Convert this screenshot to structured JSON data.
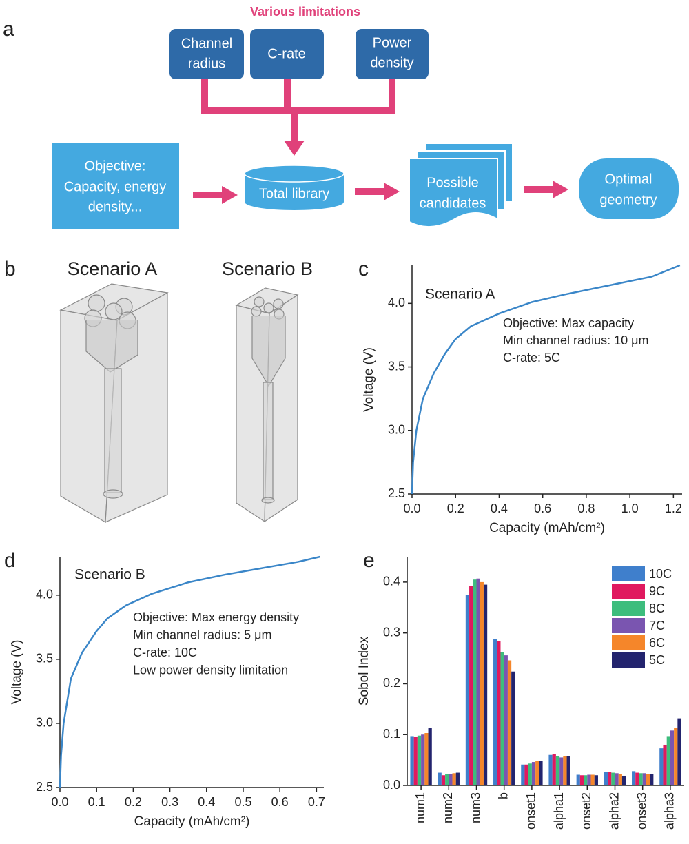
{
  "panel_labels": [
    "a",
    "b",
    "c",
    "d",
    "e"
  ],
  "diagram": {
    "title": "Various limitations",
    "limitations": [
      [
        "Channel",
        "radius"
      ],
      [
        "C-rate"
      ],
      [
        "Power",
        "density"
      ]
    ],
    "objective": [
      "Objective:",
      "Capacity, energy",
      "density..."
    ],
    "library": "Total library",
    "candidates": [
      "Possible",
      "candidates"
    ],
    "result": [
      "Optimal",
      "geometry"
    ]
  },
  "scenarios": [
    "Scenario A",
    "Scenario B"
  ],
  "chart_data": [
    {
      "type": "line",
      "inset_title": "Scenario A",
      "annotations": [
        "Objective: Max capacity",
        "Min channel radius: 10 μm",
        "C-rate: 5C"
      ],
      "x_label": "Capacity (mAh/cm²)",
      "y_label": "Voltage (V)",
      "x": [
        0,
        0.005,
        0.02,
        0.05,
        0.1,
        0.15,
        0.2,
        0.27,
        0.4,
        0.55,
        0.7,
        0.9,
        1.1,
        1.23
      ],
      "values": [
        2.5,
        2.75,
        3.0,
        3.25,
        3.45,
        3.6,
        3.72,
        3.82,
        3.92,
        4.01,
        4.07,
        4.14,
        4.21,
        4.3
      ],
      "color": "#3a86c8",
      "xlim": [
        0,
        1.24
      ],
      "ylim": [
        2.5,
        4.3
      ],
      "xticks": [
        {
          "value": 0,
          "label": "0.0"
        },
        0.2,
        0.4,
        0.6,
        0.8,
        {
          "value": 1,
          "label": "1.0"
        },
        1.2
      ],
      "yticks": [
        2.5,
        {
          "value": 3,
          "label": "3.0"
        },
        3.5,
        {
          "value": 4,
          "label": "4.0"
        }
      ]
    },
    {
      "type": "line",
      "inset_title": "Scenario B",
      "annotations": [
        "Objective: Max energy density",
        "Min channel radius: 5 μm",
        "C-rate: 10C",
        "Low power density limitation"
      ],
      "x_label": "Capacity (mAh/cm²)",
      "y_label": "Voltage (V)",
      "x": [
        0,
        0.003,
        0.01,
        0.03,
        0.06,
        0.1,
        0.13,
        0.18,
        0.25,
        0.35,
        0.45,
        0.55,
        0.65,
        0.71
      ],
      "values": [
        2.5,
        2.75,
        3.0,
        3.35,
        3.55,
        3.72,
        3.82,
        3.92,
        4.01,
        4.1,
        4.16,
        4.21,
        4.26,
        4.3
      ],
      "color": "#3a86c8",
      "xlim": [
        0,
        0.72
      ],
      "ylim": [
        2.5,
        4.3
      ],
      "xticks": [
        {
          "value": 0,
          "label": "0.0"
        },
        0.1,
        0.2,
        0.3,
        0.4,
        0.5,
        0.6,
        0.7
      ],
      "yticks": [
        2.5,
        {
          "value": 3,
          "label": "3.0"
        },
        3.5,
        {
          "value": 4,
          "label": "4.0"
        }
      ]
    },
    {
      "type": "bar",
      "y_label": "Sobol Index",
      "categories": [
        "num1",
        "num2",
        "num3",
        "b",
        "onset1",
        "alpha1",
        "onset2",
        "alpha2",
        "onset3",
        "alpha3"
      ],
      "series": [
        {
          "name": "10C",
          "color": "#3f7fcc",
          "values": [
            0.097,
            0.025,
            0.375,
            0.288,
            0.041,
            0.06,
            0.021,
            0.027,
            0.028,
            0.073
          ]
        },
        {
          "name": "9C",
          "color": "#e0195f",
          "values": [
            0.095,
            0.02,
            0.392,
            0.284,
            0.041,
            0.062,
            0.02,
            0.026,
            0.025,
            0.08
          ]
        },
        {
          "name": "8C",
          "color": "#3dbd7d",
          "values": [
            0.098,
            0.022,
            0.405,
            0.262,
            0.043,
            0.058,
            0.02,
            0.025,
            0.024,
            0.097
          ]
        },
        {
          "name": "7C",
          "color": "#7a55b0",
          "values": [
            0.1,
            0.023,
            0.407,
            0.256,
            0.046,
            0.055,
            0.021,
            0.024,
            0.024,
            0.108
          ]
        },
        {
          "name": "6C",
          "color": "#f5862a",
          "values": [
            0.103,
            0.024,
            0.4,
            0.246,
            0.048,
            0.058,
            0.021,
            0.023,
            0.023,
            0.113
          ]
        },
        {
          "name": "5C",
          "color": "#23246e",
          "values": [
            0.113,
            0.025,
            0.395,
            0.224,
            0.048,
            0.058,
            0.02,
            0.019,
            0.022,
            0.132
          ]
        }
      ],
      "ylim": [
        0,
        0.45
      ],
      "yticks": [
        {
          "value": 0,
          "label": "0.0"
        },
        0.1,
        0.2,
        0.3,
        0.4
      ],
      "legend": "upper right"
    }
  ]
}
